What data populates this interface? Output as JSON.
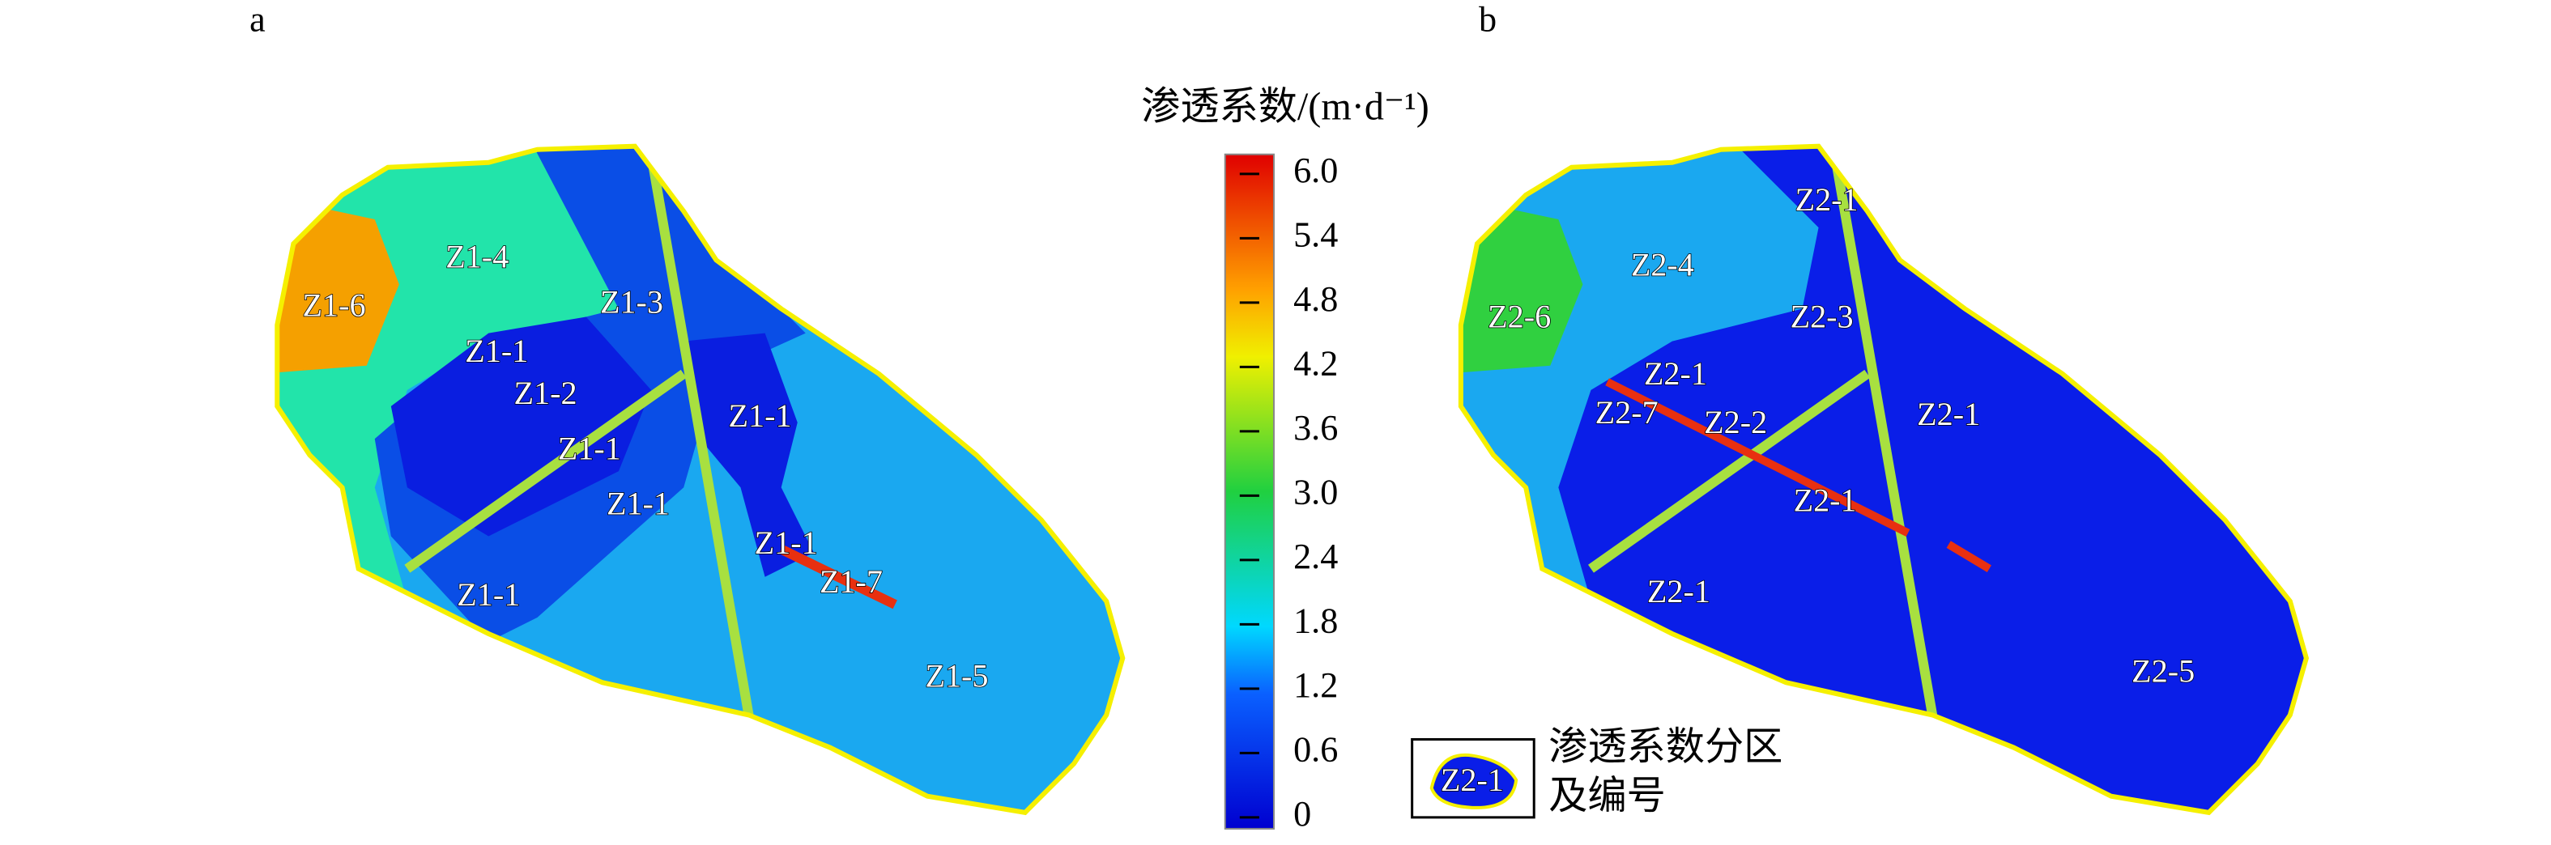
{
  "panels": [
    {
      "label": "a",
      "zones": [
        "Z1-4",
        "Z1-6",
        "Z1-3",
        "Z1-1",
        "Z1-2",
        "Z1-1",
        "Z1-1",
        "Z1-1",
        "Z1-1",
        "Z1-7",
        "Z1-1",
        "Z1-5"
      ]
    },
    {
      "label": "b",
      "zones": [
        "Z2-1",
        "Z2-4",
        "Z2-6",
        "Z2-3",
        "Z2-1",
        "Z2-7",
        "Z2-2",
        "Z2-1",
        "Z2-1",
        "Z2-1",
        "Z2-5"
      ]
    }
  ],
  "colorbar": {
    "title": "渗透系数/(m·d⁻¹)",
    "lim": [
      0,
      6
    ],
    "ticks": [
      0,
      {
        "value": 0.6,
        "label": "0.6"
      },
      {
        "value": 1.2,
        "label": "1.2"
      },
      {
        "value": 1.8,
        "label": "1.8"
      },
      {
        "value": 2.4,
        "label": "2.4"
      },
      {
        "value": 3,
        "label": "3.0"
      },
      {
        "value": 3.6,
        "label": "3.6"
      },
      {
        "value": 4.2,
        "label": "4.2"
      },
      {
        "value": 4.8,
        "label": "4.8"
      },
      {
        "value": 5.4,
        "label": "5.4"
      },
      {
        "value": 6,
        "label": "6.0"
      }
    ]
  },
  "legend": {
    "sample": "Z2-1",
    "lines": [
      "渗透系数分区",
      "及编号"
    ]
  }
}
